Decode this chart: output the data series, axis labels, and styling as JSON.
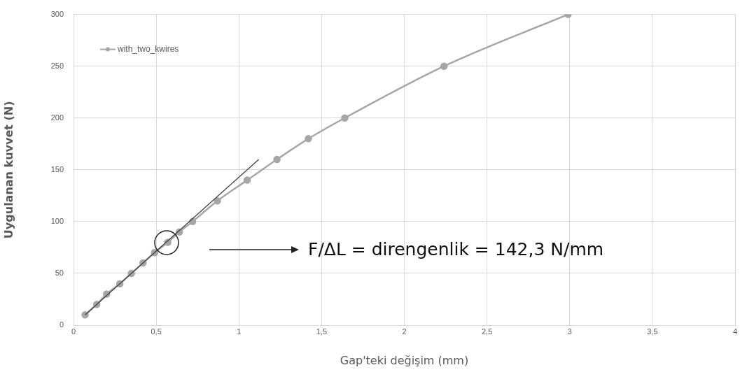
{
  "chart_data": {
    "type": "line",
    "xlabel": "Gap'teki değişim (mm)",
    "ylabel": "Uygulanan kuvvet (N)",
    "xlim": [
      0,
      4
    ],
    "xticks": [
      0,
      {
        "value": 0.5,
        "label": "0,5"
      },
      1,
      {
        "value": 1.5,
        "label": "1,5"
      },
      2,
      {
        "value": 2.5,
        "label": "2,5"
      },
      3,
      {
        "value": 3.5,
        "label": "3,5"
      },
      4
    ],
    "ylim": [
      0,
      300
    ],
    "yticks": [
      0,
      50,
      100,
      150,
      200,
      250,
      300
    ],
    "series": [
      {
        "name": "with_two_kwires",
        "color": "#a6a6a6",
        "marker": "circle",
        "x": [
          0.07,
          0.14,
          0.2,
          0.28,
          0.35,
          0.42,
          0.49,
          0.57,
          0.64,
          0.72,
          0.87,
          1.05,
          1.23,
          1.42,
          1.64,
          2.24,
          2.99
        ],
        "values": [
          10,
          20,
          30,
          40,
          50,
          60,
          70,
          80,
          90,
          100,
          120,
          140,
          160,
          180,
          200,
          250,
          300
        ]
      },
      {
        "type": "line",
        "color": "#404040",
        "marker": "none",
        "x": [
          0.07,
          1.12
        ],
        "values": [
          10,
          160
        ]
      }
    ],
    "annotations": [
      "F/ΔL = direngenlik = 142,3 N/mm"
    ],
    "grid": true,
    "legend": "top left"
  }
}
